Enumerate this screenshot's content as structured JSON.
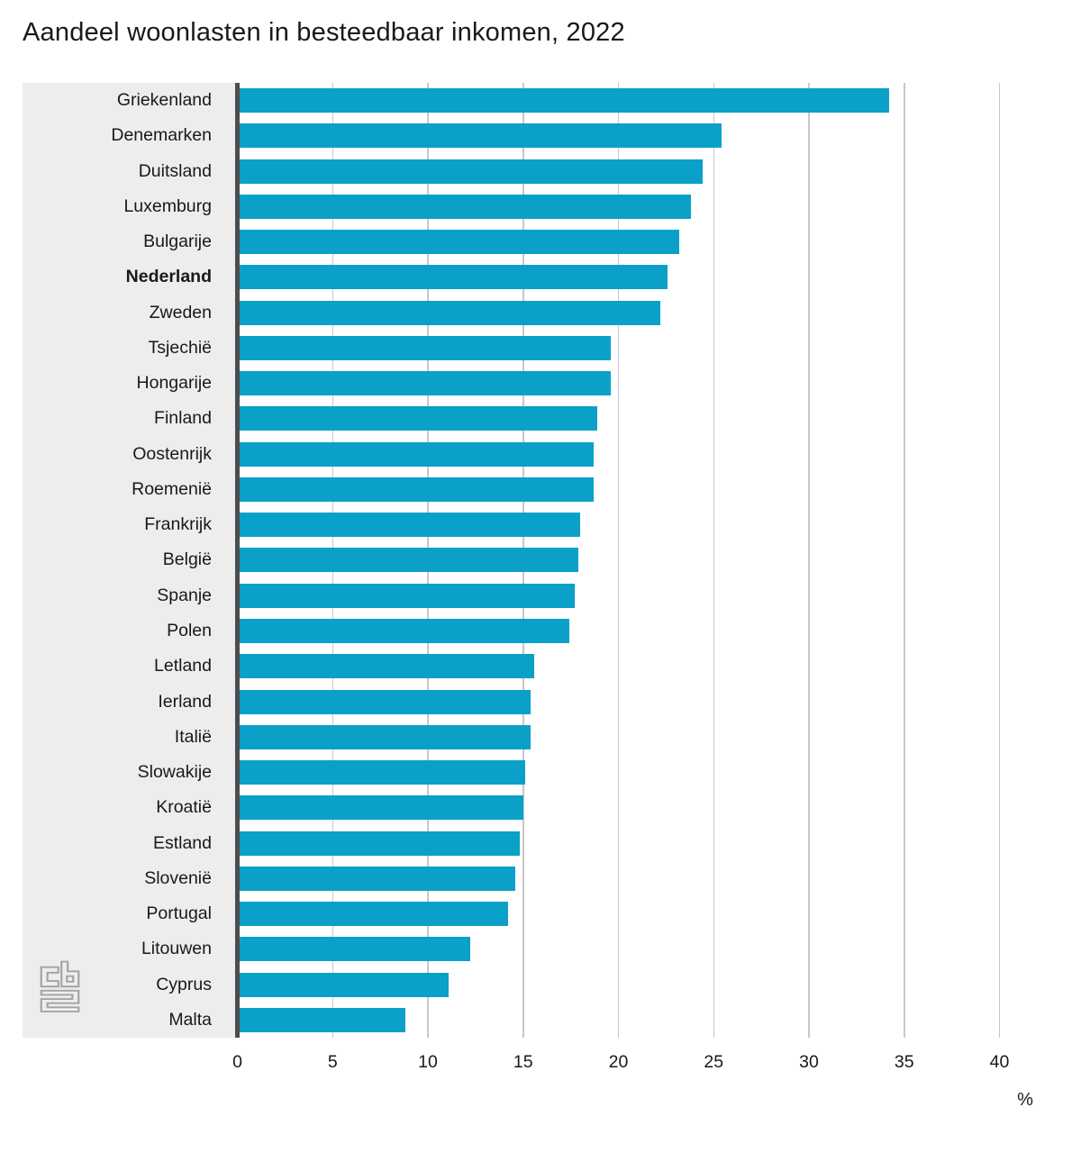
{
  "title": "Aandeel woonlasten in besteedbaar inkomen, 2022",
  "logo_name": "cbs-logo",
  "colors": {
    "bar": "#0aa0c8",
    "label_panel_bg": "#ededed",
    "zero_axis_line": "#4d4d4f",
    "gridline": "#c8c8c8",
    "text": "#191919",
    "logo_gray": "#a3a3a3"
  },
  "chart_data": {
    "type": "bar",
    "orientation": "horizontal",
    "title": "Aandeel woonlasten in besteedbaar inkomen, 2022",
    "xlabel": "%",
    "ylabel": "",
    "xlim": [
      0,
      40
    ],
    "xticks": [
      0,
      5,
      10,
      15,
      20,
      25,
      30,
      35,
      40
    ],
    "grid": true,
    "highlighted_category": "Nederland",
    "categories": [
      "Griekenland",
      "Denemarken",
      "Duitsland",
      "Luxemburg",
      "Bulgarije",
      "Nederland",
      "Zweden",
      "Tsjechië",
      "Hongarije",
      "Finland",
      "Oostenrijk",
      "Roemenië",
      "Frankrijk",
      "België",
      "Spanje",
      "Polen",
      "Letland",
      "Ierland",
      "Italië",
      "Slowakije",
      "Kroatië",
      "Estland",
      "Slovenië",
      "Portugal",
      "Litouwen",
      "Cyprus",
      "Malta"
    ],
    "values": [
      34.2,
      25.4,
      24.4,
      23.8,
      23.2,
      22.6,
      22.2,
      19.6,
      19.6,
      18.9,
      18.7,
      18.7,
      18.0,
      17.9,
      17.7,
      17.4,
      15.6,
      15.4,
      15.4,
      15.1,
      15.0,
      14.8,
      14.6,
      14.2,
      12.2,
      11.1,
      8.8
    ]
  }
}
